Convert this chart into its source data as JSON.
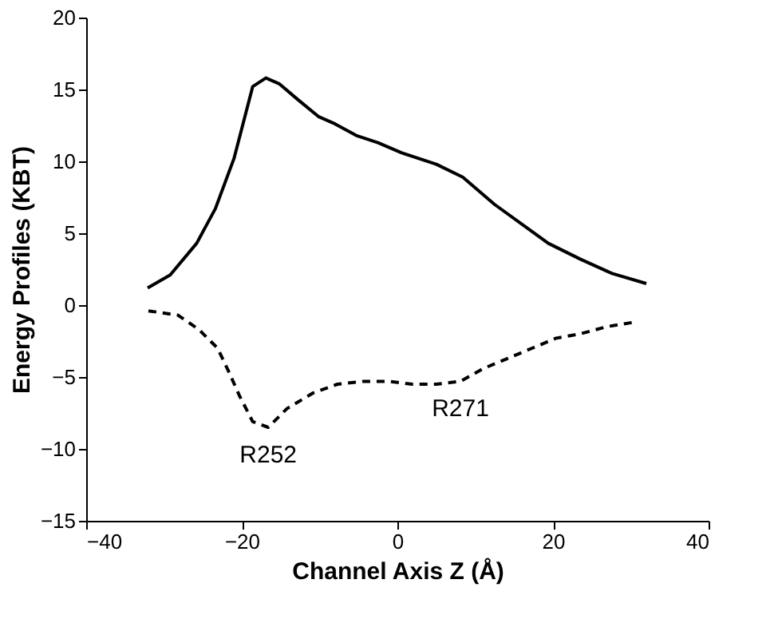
{
  "chart_data": {
    "type": "line",
    "xlabel": "Channel Axis Z (Å)",
    "ylabel": "Energy Profiles (KBT)",
    "xlim": [
      -40,
      40
    ],
    "xticks": [
      -40,
      -20,
      0,
      20,
      40
    ],
    "ylim": [
      -15,
      20
    ],
    "yticks": [
      -15,
      -10,
      -5,
      0,
      5,
      10,
      15,
      20
    ],
    "grid": false,
    "legend": false,
    "marker": "none",
    "series": [
      {
        "color": "#000000",
        "line_style": "solid",
        "x": [
          -32.1,
          -29.2,
          -25.8,
          -23.4,
          -21.0,
          -18.6,
          -16.9,
          -15.2,
          -12.8,
          -10.1,
          -8.0,
          -5.3,
          -2.5,
          0.5,
          5.0,
          8.4,
          12.5,
          16.6,
          19.4,
          23.5,
          27.6,
          32.0
        ],
        "values": [
          1.2,
          2.1,
          4.3,
          6.7,
          10.2,
          15.2,
          15.8,
          15.4,
          14.3,
          13.1,
          12.6,
          11.8,
          11.3,
          10.6,
          9.8,
          8.9,
          7.0,
          5.4,
          4.3,
          3.2,
          2.2,
          1.5
        ]
      },
      {
        "color": "#000000",
        "line_style": "dashed",
        "x": [
          -32.0,
          -28.2,
          -25.5,
          -23.1,
          -21.7,
          -20.3,
          -18.6,
          -16.6,
          -14.2,
          -10.8,
          -7.7,
          -4.3,
          -1.2,
          1.9,
          5.0,
          8.1,
          11.1,
          14.2,
          17.3,
          20.4,
          23.5,
          26.9,
          30.3
        ],
        "values": [
          -0.4,
          -0.7,
          -1.7,
          -3.0,
          -4.6,
          -6.3,
          -8.1,
          -8.5,
          -7.2,
          -6.1,
          -5.5,
          -5.3,
          -5.3,
          -5.5,
          -5.5,
          -5.3,
          -4.4,
          -3.7,
          -3.0,
          -2.3,
          -2.0,
          -1.5,
          -1.2
        ]
      }
    ],
    "annotations": [
      {
        "text": "R252",
        "x": -16.6,
        "y": -8.5
      },
      {
        "text": "R271",
        "x": 8.1,
        "y": -5.3
      }
    ]
  }
}
